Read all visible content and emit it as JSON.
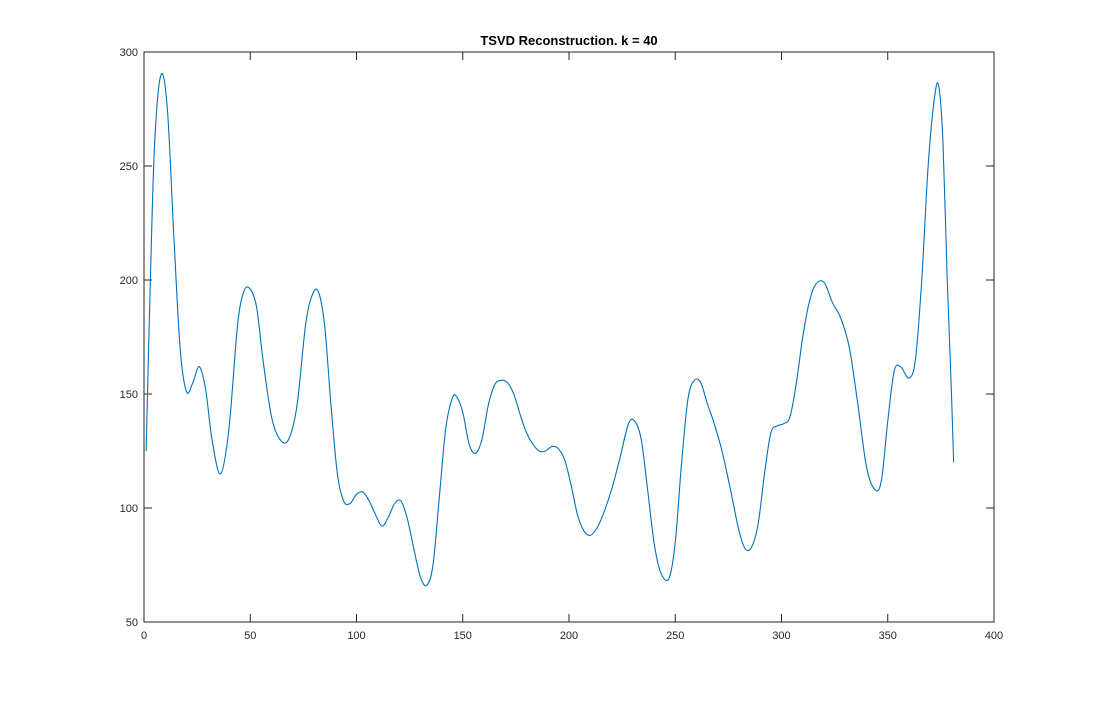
{
  "chart_data": {
    "type": "line",
    "title": "TSVD Reconstruction. k = 40",
    "xlabel": "",
    "ylabel": "",
    "xlim": [
      0,
      400
    ],
    "ylim": [
      50,
      300
    ],
    "xticks": [
      0,
      50,
      100,
      150,
      200,
      250,
      300,
      350,
      400
    ],
    "yticks": [
      50,
      100,
      150,
      200,
      250,
      300
    ],
    "xtick_labels": [
      "0",
      "50",
      "100",
      "150",
      "200",
      "250",
      "300",
      "350",
      "400"
    ],
    "ytick_labels": [
      "50",
      "100",
      "150",
      "200",
      "250",
      "300"
    ],
    "grid": false,
    "line_color": "#0072BD",
    "axes_color": "#262626",
    "series": [
      {
        "x": [
          1,
          3,
          5,
          8,
          11,
          14,
          17,
          20,
          23,
          26,
          29,
          32,
          36,
          40,
          44,
          47,
          50,
          53,
          56,
          60,
          64,
          68,
          72,
          76,
          79,
          82,
          85,
          88,
          91,
          94,
          97,
          100,
          103,
          106,
          109,
          112,
          115,
          118,
          121,
          124,
          127,
          130,
          133,
          136,
          139,
          142,
          145,
          147,
          150,
          153,
          156,
          159,
          162,
          165,
          168,
          171,
          174,
          177,
          180,
          183,
          186,
          189,
          192,
          195,
          198,
          201,
          204,
          207,
          210,
          213,
          216,
          220,
          224,
          228,
          231,
          234,
          237,
          240,
          243,
          247,
          250,
          253,
          256,
          259,
          262,
          265,
          268,
          272,
          276,
          280,
          283,
          286,
          289,
          292,
          295,
          298,
          301,
          304,
          307,
          310,
          313,
          316,
          320,
          324,
          328,
          332,
          336,
          340,
          344,
          347,
          350,
          353,
          356,
          360,
          363,
          366,
          369,
          372,
          374,
          376,
          378,
          380,
          381
        ],
        "values": [
          125,
          200,
          260,
          290,
          275,
          220,
          170,
          151,
          155,
          162,
          152,
          130,
          115,
          135,
          180,
          195,
          196,
          188,
          165,
          140,
          130,
          130,
          145,
          180,
          193,
          195,
          180,
          145,
          115,
          103,
          102,
          106,
          107,
          103,
          97,
          92,
          96,
          102,
          103,
          95,
          82,
          70,
          66,
          75,
          105,
          135,
          148,
          149,
          142,
          128,
          124,
          130,
          145,
          154,
          156,
          155,
          150,
          141,
          133,
          128,
          125,
          125,
          127,
          126,
          121,
          110,
          97,
          90,
          88,
          91,
          97,
          108,
          122,
          137,
          138,
          130,
          108,
          85,
          72,
          69,
          85,
          120,
          148,
          156,
          155,
          146,
          138,
          125,
          108,
          90,
          82,
          83,
          93,
          115,
          133,
          136,
          137,
          140,
          155,
          175,
          190,
          198,
          199,
          190,
          183,
          170,
          145,
          118,
          108,
          112,
          138,
          160,
          162,
          157,
          165,
          200,
          250,
          280,
          285,
          260,
          200,
          150,
          120
        ]
      }
    ]
  }
}
